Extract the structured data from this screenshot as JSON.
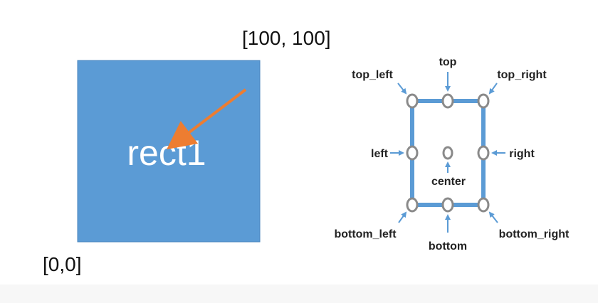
{
  "diagram": {
    "rect_label": "rect1",
    "coord_top_right": "[100, 100]",
    "coord_bottom_left": "[0,0]",
    "anchor_labels": {
      "top_left": "top_left",
      "top": "top",
      "top_right": "top_right",
      "left": "left",
      "center": "center",
      "right": "right",
      "bottom_left": "bottom_left",
      "bottom": "bottom",
      "bottom_right": "bottom_right"
    }
  },
  "colors": {
    "rect_fill": "#5b9bd5",
    "arrow": "#ed7d31",
    "frame": "#5b9bd5",
    "handle_stroke": "#8a8a8a",
    "pointer": "#5b9bd5"
  }
}
